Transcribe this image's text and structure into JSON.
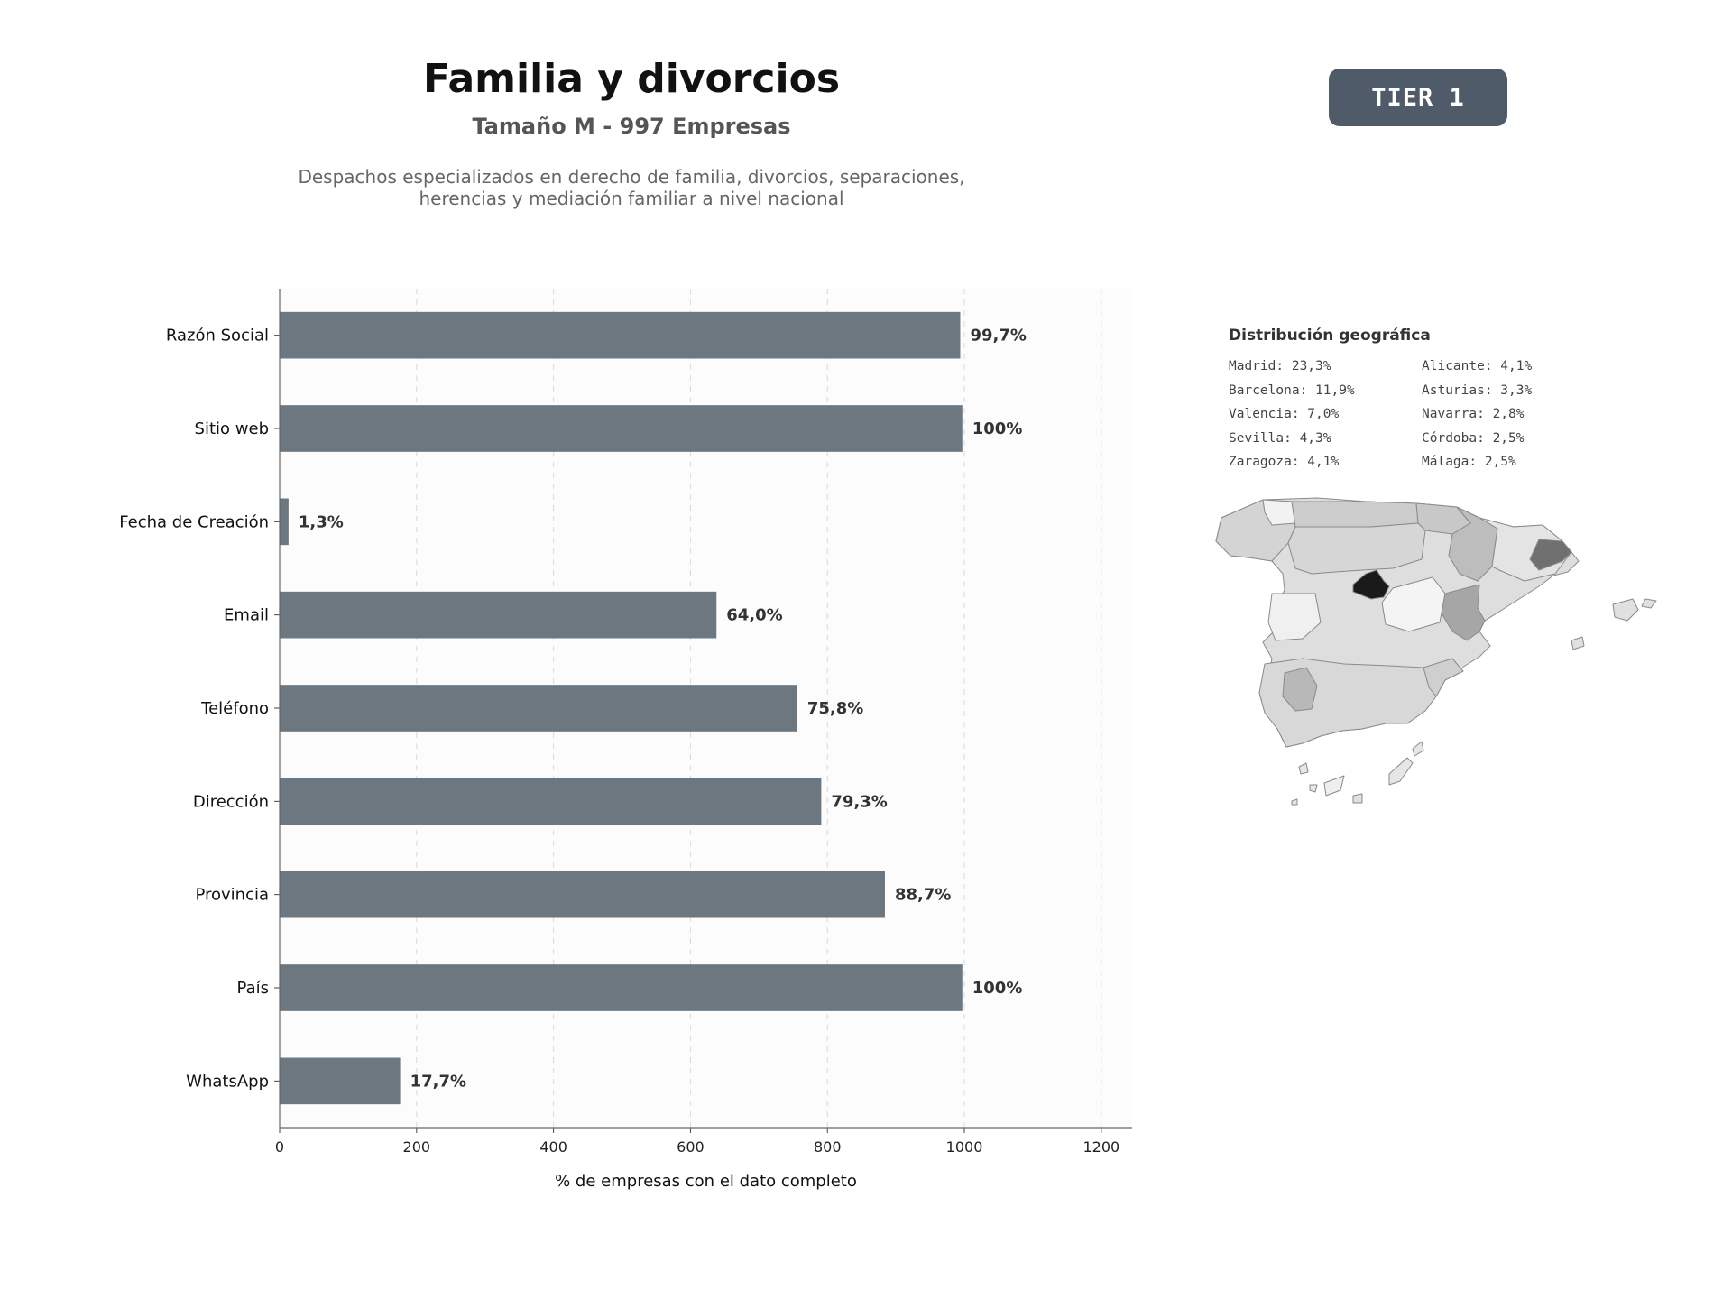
{
  "header": {
    "title": "Familia y divorcios",
    "subtitle": "Tamaño M - 997 Empresas",
    "description": "Despachos especializados en derecho de familia, divorcios, separaciones, herencias y mediación familiar a nivel nacional",
    "tier_badge": "TIER 1"
  },
  "chart_data": {
    "type": "bar",
    "orientation": "horizontal",
    "categories": [
      "Razón Social",
      "Sitio web",
      "Fecha de Creación",
      "Email",
      "Teléfono",
      "Dirección",
      "Provincia",
      "País",
      "WhatsApp"
    ],
    "values": [
      994,
      997,
      13,
      638,
      756,
      791,
      884,
      997,
      176
    ],
    "data_labels": [
      "99,7%",
      "100%",
      "1,3%",
      "64,0%",
      "75,8%",
      "79,3%",
      "88,7%",
      "100%",
      "17,7%"
    ],
    "xlabel": "% de empresas con el dato completo",
    "ylabel": "",
    "xlim": [
      0,
      1245
    ],
    "xticks": [
      0,
      200,
      400,
      600,
      800,
      1000,
      1200
    ],
    "grid": "vertical dashed",
    "bar_color": "#6c7780"
  },
  "geo": {
    "title": "Distribución geográfica",
    "items": [
      "Madrid: 23,3%",
      "Alicante: 4,1%",
      "Barcelona: 11,9%",
      "Asturias: 3,3%",
      "Valencia: 7,0%",
      "Navarra: 2,8%",
      "Sevilla: 4,3%",
      "Córdoba: 2,5%",
      "Zaragoza: 4,1%",
      "Málaga: 2,5%"
    ],
    "map_label": "Spain provinces choropleth (grayscale)"
  }
}
